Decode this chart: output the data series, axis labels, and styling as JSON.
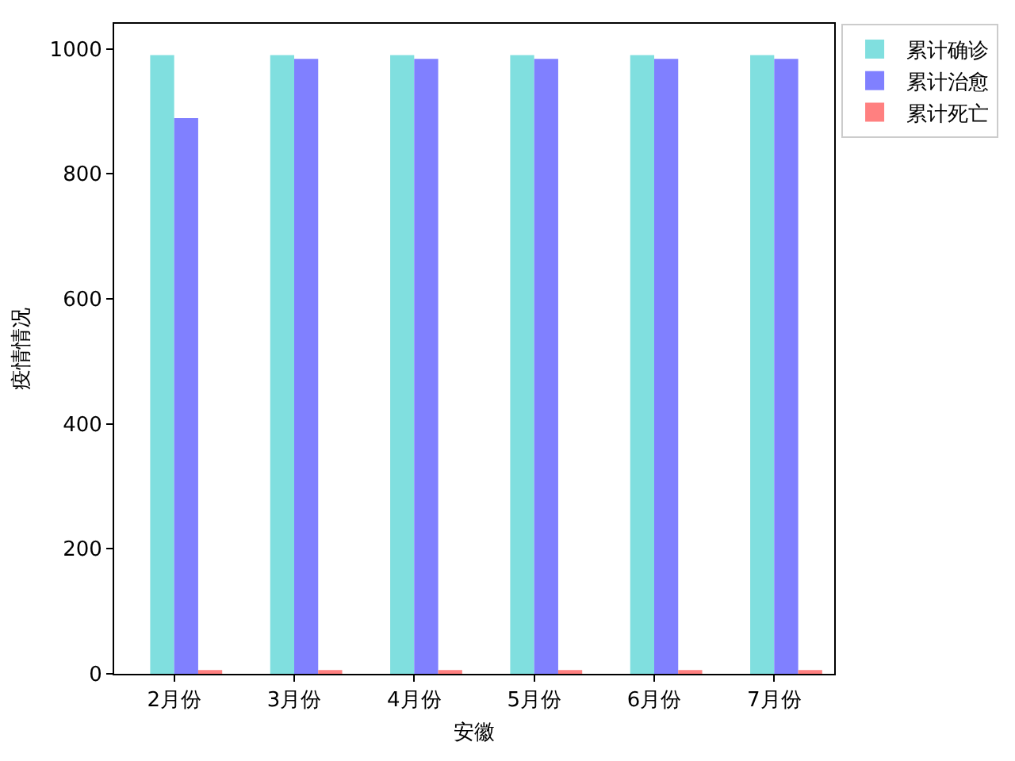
{
  "chart_data": {
    "type": "bar",
    "xlabel": "安徽",
    "ylabel": "疫情情况",
    "categories": [
      "2月份",
      "3月份",
      "4月份",
      "5月份",
      "6月份",
      "7月份"
    ],
    "series": [
      {
        "name": "累计确诊",
        "color": "#80dfdf",
        "values": [
          990,
          990,
          990,
          990,
          990,
          990
        ]
      },
      {
        "name": "累计治愈",
        "color": "#8080ff",
        "values": [
          889,
          984,
          984,
          984,
          984,
          984
        ]
      },
      {
        "name": "累计死亡",
        "color": "#ff8080",
        "values": [
          6,
          6,
          6,
          6,
          6,
          6
        ]
      }
    ],
    "ylim": [
      0,
      1040
    ],
    "yticks": [
      0,
      200,
      400,
      600,
      800,
      1000
    ],
    "legend": "top right"
  }
}
